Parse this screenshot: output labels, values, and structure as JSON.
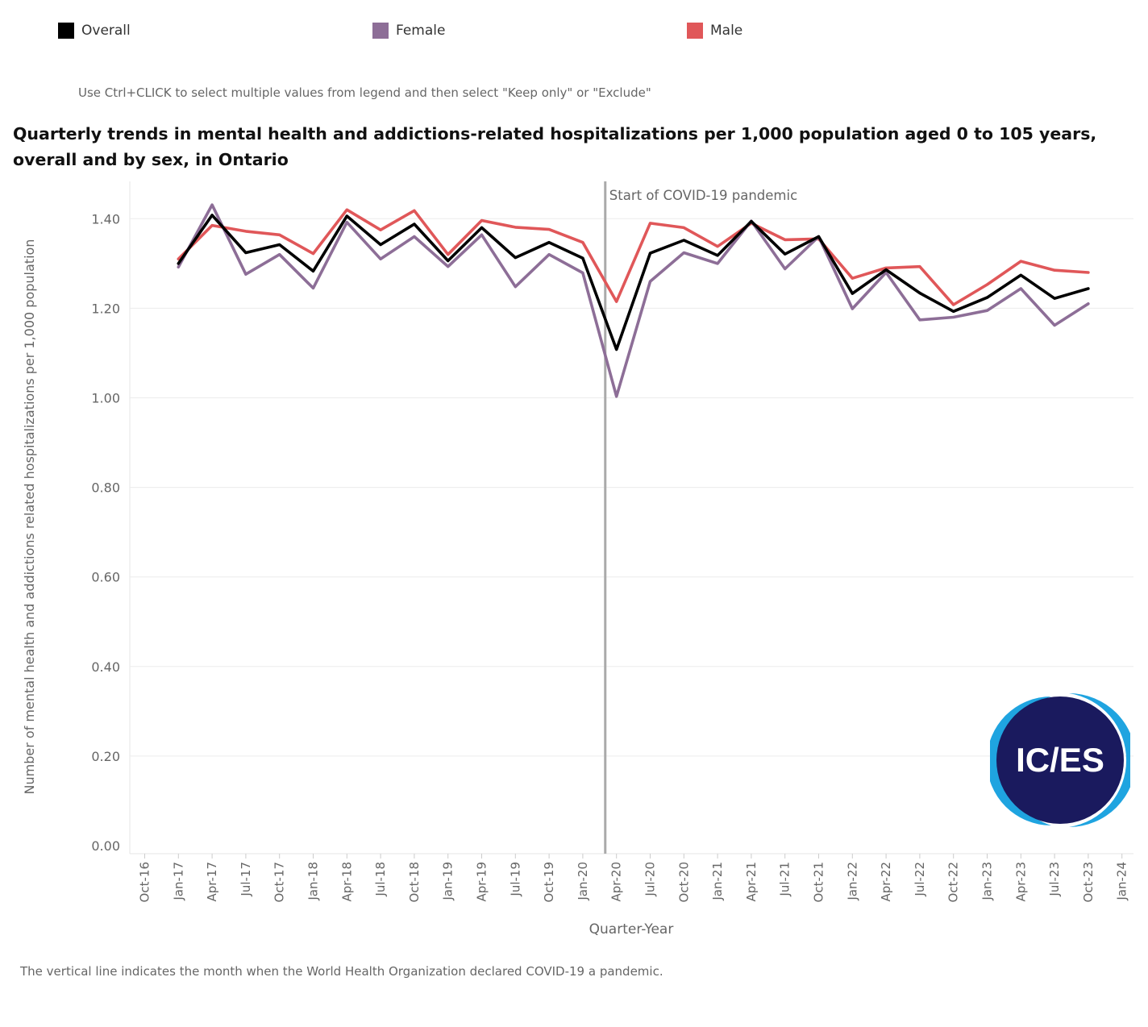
{
  "legend": {
    "items": [
      {
        "label": "Overall",
        "color": "#000000"
      },
      {
        "label": "Female",
        "color": "#8d6e97"
      },
      {
        "label": "Male",
        "color": "#e05759"
      }
    ]
  },
  "hint": "Use Ctrl+CLICK to select multiple values from legend and then select \"Keep only\" or \"Exclude\"",
  "footnote": "The vertical line indicates the month when the World Health Organization declared COVID-19 a pandemic.",
  "logo_text": "IC/ES",
  "chart_data": {
    "type": "line",
    "title": "Quarterly trends in mental health and addictions-related hospitalizations per 1,000 population aged 0 to 105 years, overall and by sex, in Ontario",
    "xlabel": "Quarter-Year",
    "ylabel": "Number of mental health and addictions related hospitalizations per 1,000 population",
    "ylim": [
      0,
      1.5
    ],
    "yticks": [
      "0.00",
      "0.20",
      "0.40",
      "0.60",
      "0.80",
      "1.00",
      "1.20",
      "1.40"
    ],
    "xticks": [
      "Oct-16",
      "Jan-17",
      "Apr-17",
      "Jul-17",
      "Oct-17",
      "Jan-18",
      "Apr-18",
      "Jul-18",
      "Oct-18",
      "Jan-19",
      "Apr-19",
      "Jul-19",
      "Oct-19",
      "Jan-20",
      "Apr-20",
      "Jul-20",
      "Oct-20",
      "Jan-21",
      "Apr-21",
      "Jul-21",
      "Oct-21",
      "Jan-22",
      "Apr-22",
      "Jul-22",
      "Oct-22",
      "Jan-23",
      "Apr-23",
      "Jul-23",
      "Oct-23",
      "Jan-24"
    ],
    "x": [
      "Jan-17",
      "Apr-17",
      "Jul-17",
      "Oct-17",
      "Jan-18",
      "Apr-18",
      "Jul-18",
      "Oct-18",
      "Jan-19",
      "Apr-19",
      "Jul-19",
      "Oct-19",
      "Jan-20",
      "Apr-20",
      "Jul-20",
      "Oct-20",
      "Jan-21",
      "Apr-21",
      "Jul-21",
      "Oct-21",
      "Jan-22",
      "Apr-22",
      "Jul-22",
      "Oct-22",
      "Jan-23",
      "Apr-23",
      "Jul-23",
      "Oct-23"
    ],
    "series": [
      {
        "name": "Male",
        "color": "#e05759",
        "values": [
          1.31,
          1.385,
          1.372,
          1.364,
          1.322,
          1.42,
          1.375,
          1.418,
          1.32,
          1.396,
          1.381,
          1.376,
          1.347,
          1.215,
          1.39,
          1.38,
          1.338,
          1.39,
          1.353,
          1.355,
          1.267,
          1.29,
          1.293,
          1.208,
          1.253,
          1.305,
          1.285,
          1.28
        ]
      },
      {
        "name": "Female",
        "color": "#8d6e97",
        "values": [
          1.292,
          1.431,
          1.276,
          1.32,
          1.245,
          1.392,
          1.31,
          1.36,
          1.293,
          1.364,
          1.248,
          1.32,
          1.279,
          1.003,
          1.26,
          1.324,
          1.3,
          1.395,
          1.288,
          1.36,
          1.199,
          1.28,
          1.174,
          1.18,
          1.195,
          1.244,
          1.162,
          1.21
        ]
      },
      {
        "name": "Overall",
        "color": "#000000",
        "values": [
          1.3,
          1.408,
          1.324,
          1.342,
          1.283,
          1.406,
          1.342,
          1.388,
          1.306,
          1.38,
          1.313,
          1.347,
          1.312,
          1.108,
          1.323,
          1.352,
          1.318,
          1.394,
          1.321,
          1.36,
          1.233,
          1.286,
          1.234,
          1.193,
          1.224,
          1.274,
          1.222,
          1.244
        ]
      }
    ],
    "annotation": {
      "label": "Start of COVID-19 pandemic",
      "at": "Mar-20"
    },
    "grid": true,
    "legend_position": "top"
  }
}
